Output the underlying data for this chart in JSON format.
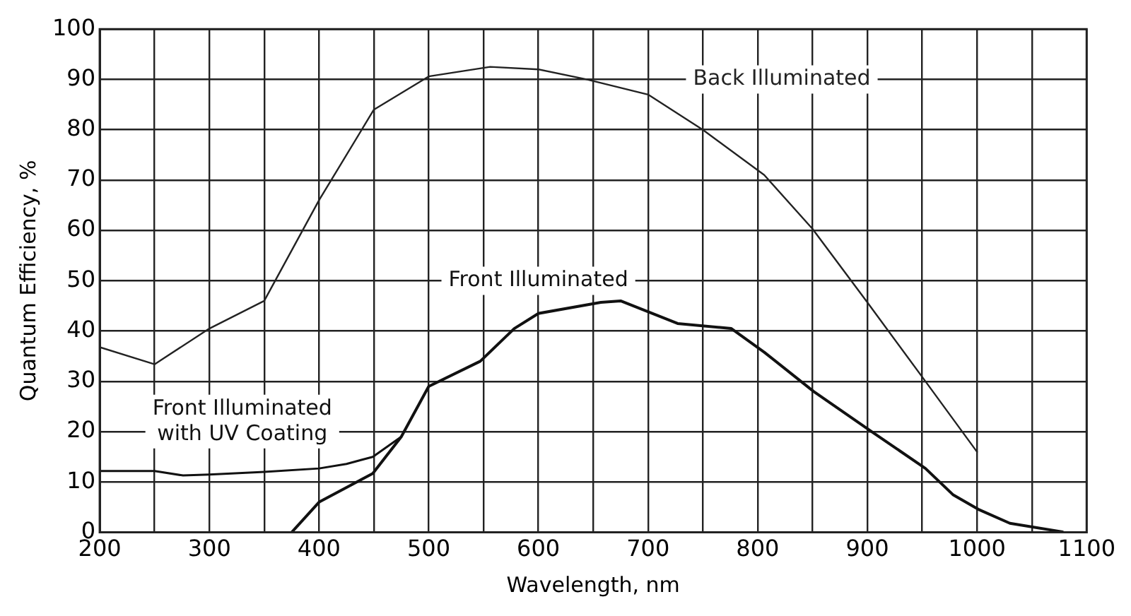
{
  "chart_data": {
    "type": "line",
    "xlabel": "Wavelength, nm",
    "ylabel": "Quantum Efficiency, %",
    "xlim": [
      200,
      1100
    ],
    "ylim": [
      0,
      100
    ],
    "xticks": [
      200,
      {
        "value": 250,
        "label": null
      },
      300,
      {
        "value": 350,
        "label": null
      },
      400,
      {
        "value": 450,
        "label": null
      },
      500,
      {
        "value": 550,
        "label": null
      },
      600,
      {
        "value": 650,
        "label": null
      },
      700,
      {
        "value": 750,
        "label": null
      },
      800,
      {
        "value": 850,
        "label": null
      },
      900,
      {
        "value": 950,
        "label": null
      },
      1000,
      {
        "value": 1050,
        "label": null
      },
      1100
    ],
    "yticks": [
      0,
      10,
      20,
      30,
      40,
      50,
      60,
      70,
      80,
      90,
      100
    ],
    "grid": true,
    "legend": false,
    "marker": "none",
    "line_style": "solid",
    "series": [
      {
        "name": "Back Illuminated",
        "color": "#222222",
        "x": [
          200,
          250,
          300,
          350,
          400,
          450,
          500,
          556,
          600,
          644,
          700,
          750,
          806,
          850,
          900,
          953,
          1000
        ],
        "values": [
          36.8,
          33.4,
          40.5,
          46,
          66,
          84,
          90.6,
          92.5,
          92,
          90,
          87,
          80,
          71,
          60.3,
          45.7,
          30,
          16
        ]
      },
      {
        "name": "Front Illuminated",
        "color": "#111111",
        "x": [
          375,
          400,
          449,
          475,
          500,
          547,
          578,
          600,
          657,
          675,
          727,
          776,
          806,
          851,
          904,
          953,
          978,
          1001,
          1030,
          1078
        ],
        "values": [
          0,
          6,
          11.7,
          19,
          29,
          34,
          40.5,
          43.5,
          45.7,
          46,
          41.5,
          40.5,
          35.8,
          28,
          20,
          12.7,
          7.5,
          4.6,
          1.8,
          0.1
        ]
      },
      {
        "name": "Front Illuminated\nwith UV Coating",
        "color": "#111111",
        "x": [
          200,
          250,
          276,
          300,
          350,
          400,
          425,
          449,
          475
        ],
        "values": [
          12.2,
          12.2,
          11.3,
          11.5,
          12,
          12.7,
          13.6,
          15,
          19
        ]
      }
    ]
  }
}
